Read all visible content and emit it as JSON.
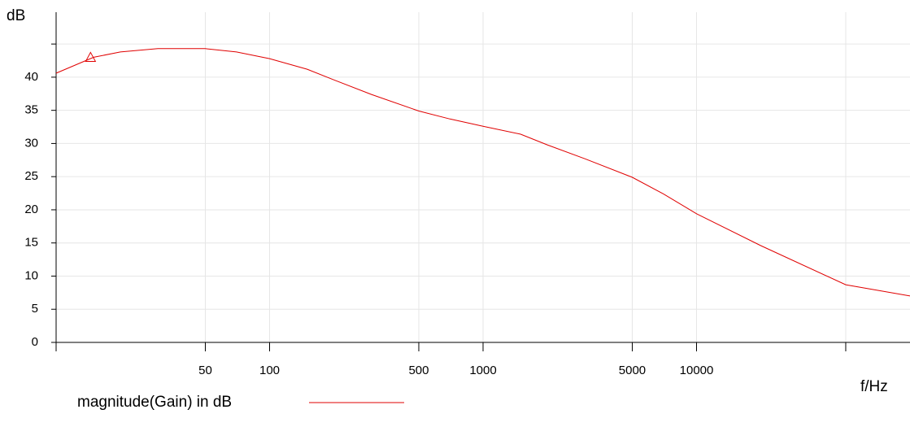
{
  "chart_data": {
    "type": "line",
    "ylabel": "dB",
    "xlabel": "f/Hz",
    "xscale": "log",
    "grid": true,
    "xlim": [
      10,
      100000
    ],
    "ylim": [
      0,
      49.8
    ],
    "xticks": [
      {
        "value": 10,
        "label": null
      },
      50,
      100,
      500,
      1000,
      5000,
      10000,
      {
        "value": 50000,
        "label": null
      }
    ],
    "yticks": [
      0,
      5,
      10,
      15,
      20,
      25,
      30,
      35,
      40,
      {
        "value": 45,
        "label": null
      }
    ],
    "x": [
      10,
      15,
      20,
      30,
      50,
      70,
      100,
      150,
      200,
      300,
      500,
      700,
      1000,
      1500,
      2000,
      3000,
      5000,
      7000,
      10000,
      20000,
      50000,
      100000
    ],
    "series": [
      {
        "name": "magnitude(Gain) in dB",
        "color": "#e00000",
        "values": [
          40.6,
          43.0,
          43.8,
          44.3,
          44.3,
          43.8,
          42.8,
          41.2,
          39.6,
          37.4,
          34.9,
          33.7,
          32.6,
          31.4,
          29.8,
          27.7,
          24.9,
          22.4,
          19.4,
          14.6,
          8.7,
          7.0
        ]
      }
    ],
    "marker": {
      "x": 14.5,
      "y": 43
    }
  }
}
